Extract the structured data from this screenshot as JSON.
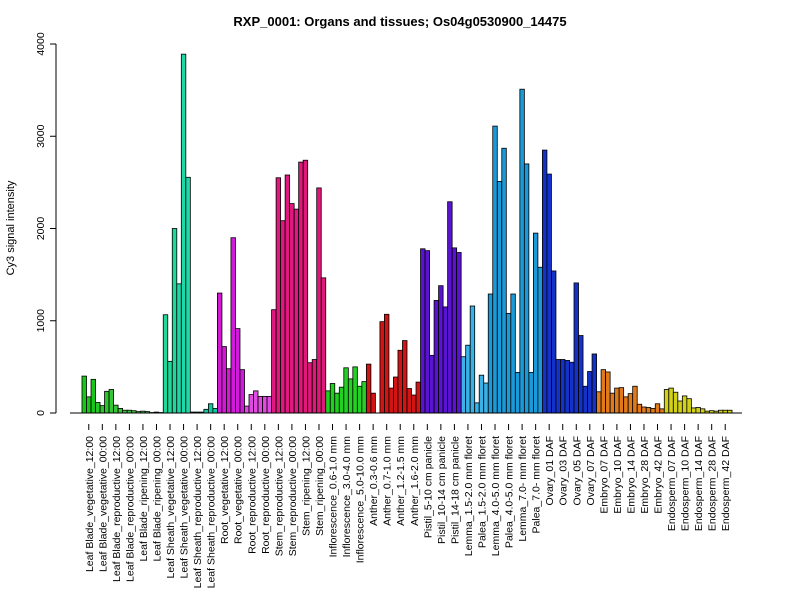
{
  "chart_data": {
    "type": "bar",
    "title": "RXP_0001: Organs and tissues; Os04g0530900_14475",
    "xlabel": "",
    "ylabel": "Cy3 signal intensity",
    "ylim": [
      0,
      4000
    ],
    "yticks": [
      "0",
      "1000",
      "2000",
      "3000",
      "4000"
    ],
    "grid": false,
    "categories": [
      "Leaf Blade_vegetative_12:00",
      "Leaf Blade_vegetative_00:00",
      "Leaf Blade_reproductive_12:00",
      "Leaf Blade_reproductive_00:00",
      "Leaf Blade_ripening_12:00",
      "Leaf Blade_ripening_00:00",
      "Leaf Sheath_vegetative_12:00",
      "Leaf Sheath_vegetative_00:00",
      "Leaf Sheath_reproductive_12:00",
      "Leaf Sheath_reproductive_00:00",
      "Root_vegetative_12:00",
      "Root_vegetative_00:00",
      "Root_reproductive_12:00",
      "Root_reproductive_00:00",
      "Stem_reproductive_12:00",
      "Stem_reproductive_00:00",
      "Stem_ripening_12:00",
      "Stem_ripening_00:00",
      "Inflorescence_0.6-1.0 mm",
      "Inflorescence_3.0-4.0 mm",
      "Inflorescence_5.0-10.0 mm",
      "Anther_0.3-0.6 mm",
      "Anther_0.7-1.0 mm",
      "Anther_1.2-1.5 mm",
      "Anther_1.6-2.0 mm",
      "Pistil_5-10 cm panicle",
      "Pistil_10-14 cm panicle",
      "Pistil_14-18 cm panicle",
      "Lemma_1.5-2.0 mm floret",
      "Palea_1.5-2.0 mm floret",
      "Lemma_4.0-5.0 mm floret",
      "Palea_4.0-5.0 mm floret",
      "Lemma_7.0- mm floret",
      "Palea_7.0- mm floret",
      "Ovary_01 DAF",
      "Ovary_03 DAF",
      "Ovary_05 DAF",
      "Ovary_07 DAF",
      "Embryo_07 DAF",
      "Embryo_10 DAF",
      "Embryo_14 DAF",
      "Embryo_28 DAF",
      "Embryo_42 DAF",
      "Endosperm_07 DAF",
      "Endosperm_10 DAF",
      "Endosperm_14 DAF",
      "Endosperm_28 DAF",
      "Endosperm_42 DAF"
    ],
    "groups": [
      {
        "color": "#19c719",
        "values": [
          400,
          175,
          365
        ]
      },
      {
        "color": "#29c729",
        "values": [
          115,
          80,
          235
        ]
      },
      {
        "color": "#36c736",
        "values": [
          255,
          85,
          50
        ]
      },
      {
        "color": "#3fbf3f",
        "values": [
          30,
          30,
          25
        ]
      },
      {
        "color": "#3abf4a",
        "values": [
          15,
          20,
          15
        ]
      },
      {
        "color": "#35bf55",
        "values": [
          5,
          10,
          5
        ]
      },
      {
        "color": "#1fd89a",
        "values": [
          1065,
          560,
          2000
        ]
      },
      {
        "color": "#1fd8a8",
        "values": [
          1400,
          3890,
          2555
        ]
      },
      {
        "color": "#12c790",
        "values": [
          10,
          10,
          10
        ]
      },
      {
        "color": "#12c7a0",
        "values": [
          40,
          100,
          50
        ]
      },
      {
        "color": "#d11ad1",
        "values": [
          1300,
          720,
          480
        ]
      },
      {
        "color": "#d11adb",
        "values": [
          1900,
          915,
          470
        ]
      },
      {
        "color": "#e04ae0",
        "values": [
          75,
          200,
          240
        ]
      },
      {
        "color": "#e04ae0",
        "values": [
          180,
          180,
          180
        ]
      },
      {
        "color": "#e0187e",
        "values": [
          1120,
          2550,
          2085
        ]
      },
      {
        "color": "#e01880",
        "values": [
          2580,
          2270,
          2210
        ]
      },
      {
        "color": "#e0187a",
        "values": [
          2720,
          2740,
          545
        ]
      },
      {
        "color": "#e0187a",
        "values": [
          580,
          2440,
          1465
        ]
      },
      {
        "color": "#1fd11f",
        "values": [
          240,
          320,
          215
        ]
      },
      {
        "color": "#22d122",
        "values": [
          280,
          490,
          370
        ]
      },
      {
        "color": "#25d125",
        "values": [
          500,
          290,
          340
        ]
      },
      {
        "color": "#d11414",
        "values": [
          530,
          215,
          0
        ]
      },
      {
        "color": "#d11414",
        "values": [
          990,
          1070,
          270
        ]
      },
      {
        "color": "#d11414",
        "values": [
          390,
          680,
          785
        ]
      },
      {
        "color": "#d11414",
        "values": [
          265,
          195,
          335
        ]
      },
      {
        "color": "#5a14d1",
        "values": [
          1780,
          1760,
          625
        ]
      },
      {
        "color": "#5a14d1",
        "values": [
          1220,
          1380,
          1150
        ]
      },
      {
        "color": "#5a14d1",
        "values": [
          2290,
          1790,
          1740
        ]
      },
      {
        "color": "#3ab2e8",
        "values": [
          610,
          735,
          1160
        ]
      },
      {
        "color": "#3ab2e8",
        "values": [
          110,
          410,
          325
        ]
      },
      {
        "color": "#1a9ad8",
        "values": [
          1290,
          3110,
          2510
        ]
      },
      {
        "color": "#1a9ad8",
        "values": [
          2870,
          1080,
          1290
        ]
      },
      {
        "color": "#1a9ad8",
        "values": [
          440,
          3510,
          2700
        ]
      },
      {
        "color": "#1a9ad8",
        "values": [
          440,
          1950,
          1580
        ]
      },
      {
        "color": "#1432c7",
        "values": [
          2850,
          2590,
          1540
        ]
      },
      {
        "color": "#1432c7",
        "values": [
          580,
          580,
          570
        ]
      },
      {
        "color": "#1432c7",
        "values": [
          550,
          1410,
          840
        ]
      },
      {
        "color": "#1432c7",
        "values": [
          290,
          450,
          640
        ]
      },
      {
        "color": "#e07a1a",
        "values": [
          230,
          470,
          445
        ]
      },
      {
        "color": "#e07a1a",
        "values": [
          215,
          270,
          275
        ]
      },
      {
        "color": "#e07a1a",
        "values": [
          175,
          210,
          290
        ]
      },
      {
        "color": "#e07a1a",
        "values": [
          95,
          65,
          60
        ]
      },
      {
        "color": "#e07a1a",
        "values": [
          50,
          100,
          45
        ]
      },
      {
        "color": "#d1d11a",
        "values": [
          255,
          270,
          225
        ]
      },
      {
        "color": "#d1d11a",
        "values": [
          130,
          185,
          155
        ]
      },
      {
        "color": "#d1d11a",
        "values": [
          55,
          60,
          45
        ]
      },
      {
        "color": "#d1d11a",
        "values": [
          20,
          25,
          20
        ]
      },
      {
        "color": "#d1d11a",
        "values": [
          30,
          30,
          30
        ]
      }
    ]
  }
}
